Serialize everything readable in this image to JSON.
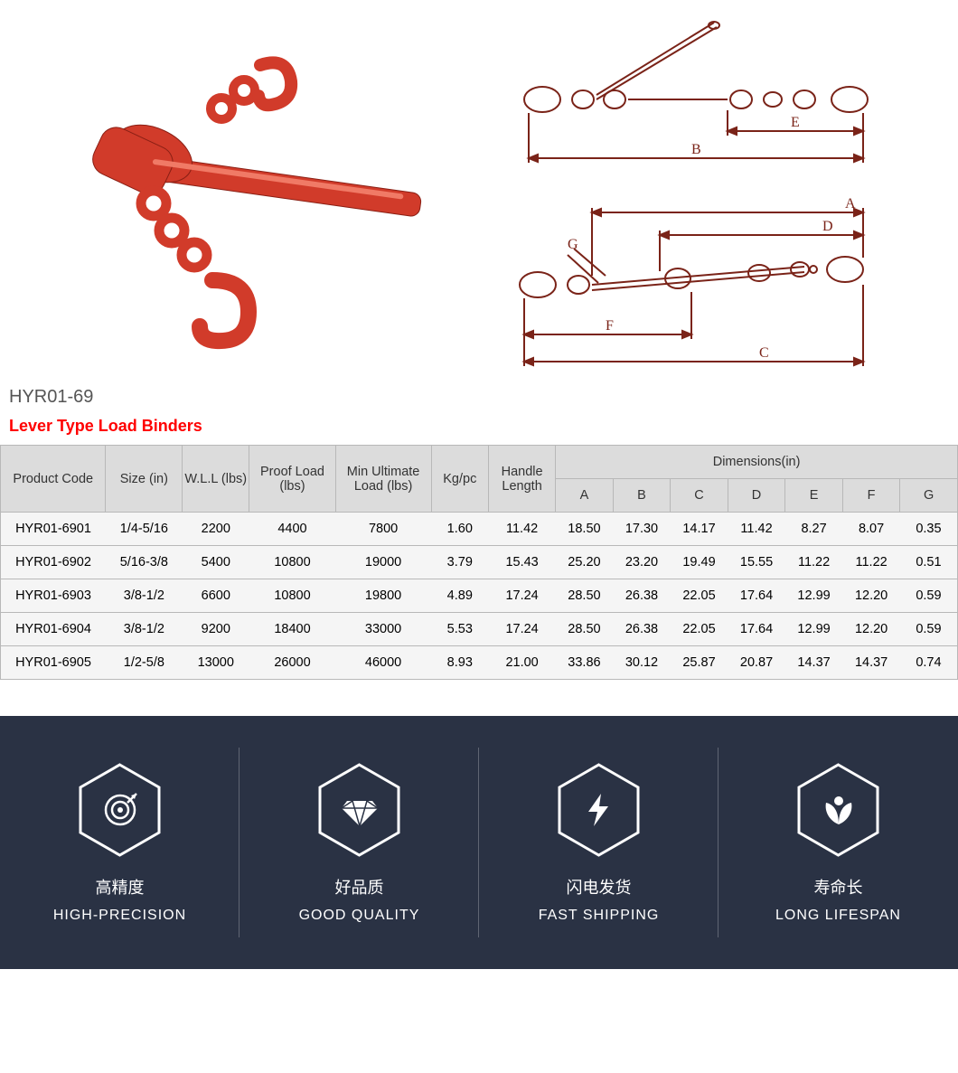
{
  "product_code_label": "HYR01-69",
  "product_title": "Lever Type Load Binders",
  "title_color": "#ff0000",
  "photo_tint": "#d13b2a",
  "diagram_stroke": "#7a2318",
  "table": {
    "header_bg": "#dcdcdc",
    "border_color": "#b8b8b8",
    "row_bg": "#f5f5f5",
    "columns_row1": [
      "Product Code",
      "Size (in)",
      "W.L.L (lbs)",
      "Proof Load (lbs)",
      "Min Ultimate Load (lbs)",
      "Kg/pc",
      "Handle Length"
    ],
    "dimensions_label": "Dimensions(in)",
    "dim_cols": [
      "A",
      "B",
      "C",
      "D",
      "E",
      "F",
      "G"
    ],
    "rows": [
      [
        "HYR01-6901",
        "1/4-5/16",
        "2200",
        "4400",
        "7800",
        "1.60",
        "11.42",
        "18.50",
        "17.30",
        "14.17",
        "11.42",
        "8.27",
        "8.07",
        "0.35"
      ],
      [
        "HYR01-6902",
        "5/16-3/8",
        "5400",
        "10800",
        "19000",
        "3.79",
        "15.43",
        "25.20",
        "23.20",
        "19.49",
        "15.55",
        "11.22",
        "11.22",
        "0.51"
      ],
      [
        "HYR01-6903",
        "3/8-1/2",
        "6600",
        "10800",
        "19800",
        "4.89",
        "17.24",
        "28.50",
        "26.38",
        "22.05",
        "17.64",
        "12.99",
        "12.20",
        "0.59"
      ],
      [
        "HYR01-6904",
        "3/8-1/2",
        "9200",
        "18400",
        "33000",
        "5.53",
        "17.24",
        "28.50",
        "26.38",
        "22.05",
        "17.64",
        "12.99",
        "12.20",
        "0.59"
      ],
      [
        "HYR01-6905",
        "1/2-5/8",
        "13000",
        "26000",
        "46000",
        "8.93",
        "21.00",
        "33.86",
        "30.12",
        "25.87",
        "20.87",
        "14.37",
        "14.37",
        "0.74"
      ]
    ]
  },
  "diagram_top": {
    "labels": {
      "B": "B",
      "E": "E"
    }
  },
  "diagram_bottom": {
    "labels": {
      "A": "A",
      "C": "C",
      "D": "D",
      "F": "F",
      "G": "G"
    }
  },
  "features_bg": "#2a3244",
  "features": [
    {
      "icon": "target",
      "cn": "高精度",
      "en": "HIGH-PRECISION"
    },
    {
      "icon": "diamond",
      "cn": "好品质",
      "en": "GOOD QUALITY"
    },
    {
      "icon": "bolt",
      "cn": "闪电发货",
      "en": "FAST SHIPPING"
    },
    {
      "icon": "sprout",
      "cn": "寿命长",
      "en": "LONG LIFESPAN"
    }
  ]
}
